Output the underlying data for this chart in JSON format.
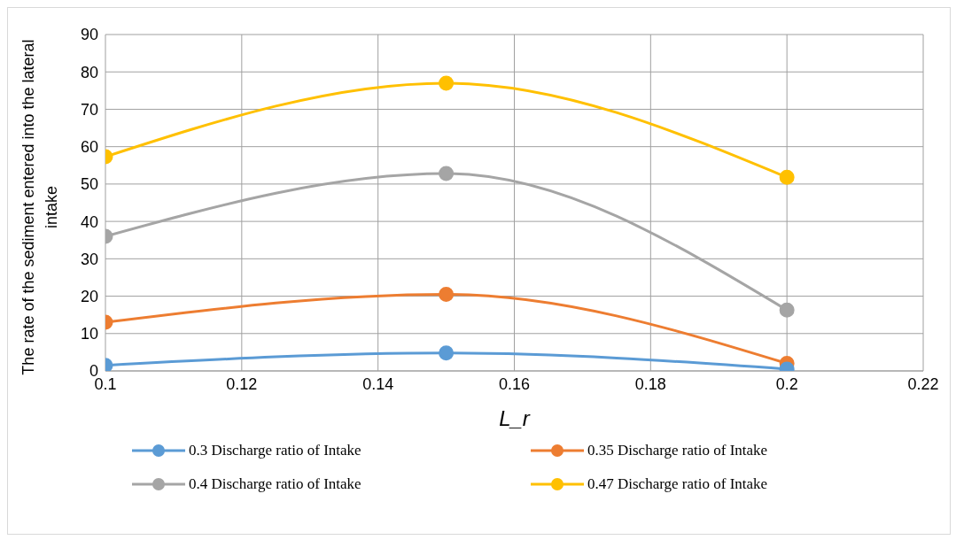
{
  "chart_data": {
    "type": "line",
    "xlabel": "L_r",
    "ylabel": "The rate of the sediment entered into the lateral intake",
    "x": [
      0.1,
      0.15,
      0.2
    ],
    "series": [
      {
        "name": "0.3 Discharge ratio of Intake",
        "color": "#5b9bd5",
        "values": [
          1.5,
          4.8,
          0.5
        ]
      },
      {
        "name": "0.35 Discharge ratio of Intake",
        "color": "#ed7d31",
        "values": [
          13,
          20.5,
          2
        ]
      },
      {
        "name": "0.4 Discharge ratio of Intake",
        "color": "#a5a5a5",
        "values": [
          36,
          52.8,
          16.3
        ]
      },
      {
        "name": "0.47 Discharge ratio of Intake",
        "color": "#ffc000",
        "values": [
          57.3,
          77,
          51.8
        ]
      }
    ],
    "xlim": [
      0.1,
      0.22
    ],
    "xticks": [
      0.1,
      0.12,
      0.14,
      0.16,
      0.18,
      0.2,
      0.22
    ],
    "ylim": [
      0,
      90
    ],
    "yticks": [
      0,
      10,
      20,
      30,
      40,
      50,
      60,
      70,
      80,
      90
    ],
    "grid": true,
    "legend": "bottom",
    "marker": "circle",
    "line_style": "solid"
  }
}
